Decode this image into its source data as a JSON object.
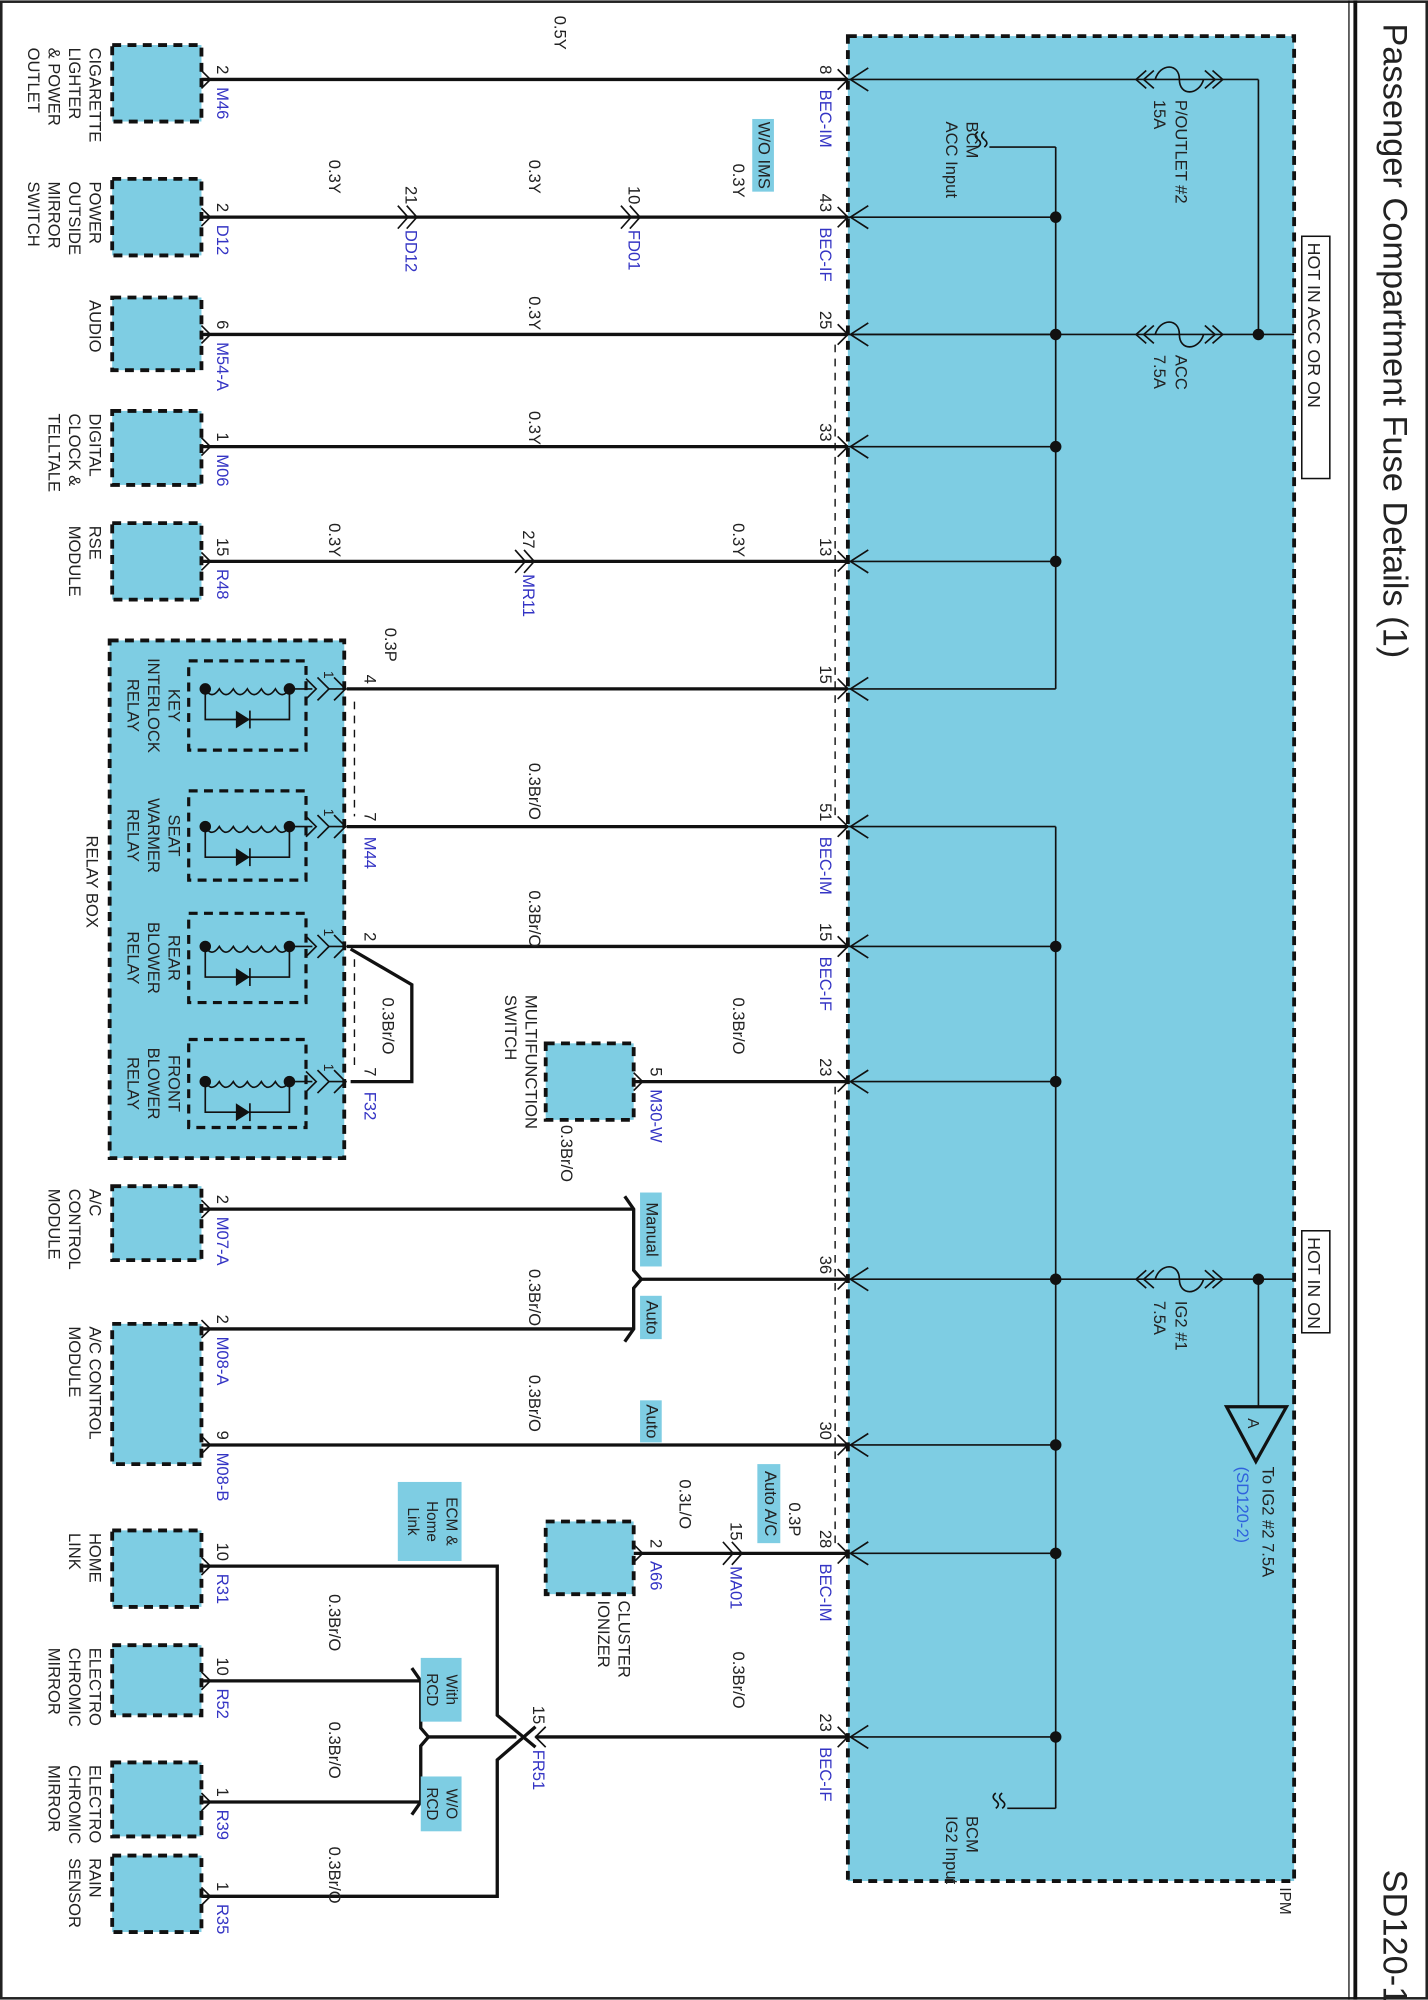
{
  "header": {
    "title": "Passenger Compartment Fuse Details (1)",
    "page_code": "SD120-1"
  },
  "ipm": {
    "label": "IPM",
    "hot_acc_or_on": "HOT IN ACC OR ON",
    "hot_on": "HOT IN ON",
    "fuses": [
      {
        "name": "P/OUTLET #2",
        "rating": "15A"
      },
      {
        "name": "ACC",
        "rating": "7.5A"
      },
      {
        "name": "IG2 #1",
        "rating": "7.5A"
      }
    ],
    "bcm_acc": [
      "BCM",
      "ACC Input"
    ],
    "bcm_ig2": [
      "BCM",
      "IG2 Input"
    ],
    "ref": {
      "marker": "A",
      "text": "To IG2 #2 7.5A",
      "link": "(SD120-2)"
    },
    "pins": [
      {
        "pin": "8",
        "conn": "BEC-IM"
      },
      {
        "pin": "43",
        "conn": "BEC-IF"
      },
      {
        "pin": "25"
      },
      {
        "pin": "33"
      },
      {
        "pin": "13"
      },
      {
        "pin": "15"
      },
      {
        "pin": "51",
        "conn": "BEC-IM"
      },
      {
        "pin": "15",
        "conn": "BEC-IF"
      },
      {
        "pin": "23"
      },
      {
        "pin": "36"
      },
      {
        "pin": "30"
      },
      {
        "pin": "28",
        "conn": "BEC-IM"
      },
      {
        "pin": "23",
        "conn": "BEC-IF"
      }
    ]
  },
  "components": [
    {
      "label": [
        "CIGARETTE",
        "LIGHTER",
        "& POWER",
        "OUTLET"
      ],
      "pins": [
        {
          "pin": "2",
          "conn": "M46"
        }
      ]
    },
    {
      "label": [
        "POWER",
        "OUTSIDE",
        "MIRROR",
        "SWITCH"
      ],
      "pins": [
        {
          "pin": "2",
          "conn": "D12"
        }
      ]
    },
    {
      "label": [
        "AUDIO"
      ],
      "pins": [
        {
          "pin": "6",
          "conn": "M54-A"
        }
      ]
    },
    {
      "label": [
        "DIGITAL",
        "CLOCK &",
        "TELLTALE"
      ],
      "pins": [
        {
          "pin": "1",
          "conn": "M06"
        }
      ]
    },
    {
      "label": [
        "RSE",
        "MODULE"
      ],
      "pins": [
        {
          "pin": "15",
          "conn": "R48"
        }
      ]
    },
    {
      "label": [
        "A/C",
        "CONTROL",
        "MODULE"
      ],
      "pins": [
        {
          "pin": "2",
          "conn": "M07-A"
        }
      ]
    },
    {
      "label": [
        "A/C CONTROL",
        "MODULE"
      ],
      "pins": [
        {
          "pin": "2",
          "conn": "M08-A"
        },
        {
          "pin": "9",
          "conn": "M08-B"
        }
      ]
    },
    {
      "label": [
        "HOME",
        "LINK"
      ],
      "pins": [
        {
          "pin": "10",
          "conn": "R31"
        }
      ]
    },
    {
      "label": [
        "ELECTRO",
        "CHROMIC",
        "MIRROR"
      ],
      "pins": [
        {
          "pin": "10",
          "conn": "R52"
        }
      ]
    },
    {
      "label": [
        "ELECTRO",
        "CHROMIC",
        "MIRROR"
      ],
      "pins": [
        {
          "pin": "1",
          "conn": "R39"
        }
      ]
    },
    {
      "label": [
        "RAIN",
        "SENSOR"
      ],
      "pins": [
        {
          "pin": "1",
          "conn": "R35"
        }
      ]
    }
  ],
  "mid_components": [
    {
      "label": [
        "MULTIFUNCTION",
        "SWITCH"
      ],
      "pins": [
        {
          "pin": "5",
          "conn": "M30-W"
        }
      ]
    },
    {
      "label": [
        "CLUSTER",
        "IONIZER"
      ],
      "pins": [
        {
          "pin": "2",
          "conn": "A66"
        }
      ]
    }
  ],
  "relay_box": {
    "label": "RELAY BOX",
    "relays": [
      {
        "label": [
          "KEY",
          "INTERLOCK",
          "RELAY"
        ],
        "inner_pin": "1",
        "pin": "4"
      },
      {
        "label": [
          "SEAT",
          "WARMER",
          "RELAY"
        ],
        "inner_pin": "1",
        "pin": "7",
        "conn": "M44"
      },
      {
        "label": [
          "REAR",
          "BLOWER",
          "RELAY"
        ],
        "inner_pin": "1",
        "pin": "2"
      },
      {
        "label": [
          "FRONT",
          "BLOWER",
          "RELAY"
        ],
        "inner_pin": "1",
        "pin": "7",
        "conn": "F32"
      }
    ]
  },
  "inline_connectors": [
    {
      "pin": "21",
      "conn": "DD12"
    },
    {
      "pin": "10",
      "conn": "FD01"
    },
    {
      "pin": "27",
      "conn": "MR11"
    },
    {
      "pin": "15",
      "conn": "MA01"
    },
    {
      "pin": "15",
      "conn": "FR51"
    }
  ],
  "wire_labels": [
    "0.5Y",
    "0.3Y",
    "0.3Y",
    "0.3Y",
    "0.3Y",
    "0.3Y",
    "0.3Y",
    "0.3Y",
    "0.3P",
    "0.3Br/O",
    "0.3Br/O",
    "0.3Br/O",
    "0.3Br/O",
    "0.3Br/O",
    "0.3Br/O",
    "0.3Br/O",
    "0.3L/O",
    "0.3P",
    "0.3Br/O",
    "0.3Br/O",
    "0.3Br/O",
    "0.3Br/O"
  ],
  "options": [
    {
      "label": [
        "W/O IMS"
      ]
    },
    {
      "label": [
        "Manual"
      ]
    },
    {
      "label": [
        "Auto"
      ]
    },
    {
      "label": [
        "Auto"
      ]
    },
    {
      "label": [
        "Auto A/C"
      ]
    },
    {
      "label": [
        "ECM &",
        "Home",
        "Link"
      ]
    },
    {
      "label": [
        "With",
        "RCD"
      ]
    },
    {
      "label": [
        "W/O",
        "RCD"
      ]
    }
  ],
  "colors": {
    "module_fill": "#7ecde3",
    "connector_text": "#3434c4",
    "link_text": "#2f62dd"
  }
}
